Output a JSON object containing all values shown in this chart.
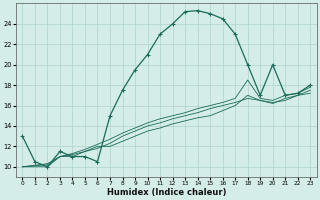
{
  "xlabel": "Humidex (Indice chaleur)",
  "bg_color": "#d5ede8",
  "grid_color": "#aed4cc",
  "line_color": "#1a6b5a",
  "xlim": [
    -0.5,
    23.5
  ],
  "ylim": [
    9,
    26
  ],
  "xticks": [
    0,
    1,
    2,
    3,
    4,
    5,
    6,
    7,
    8,
    9,
    10,
    11,
    12,
    13,
    14,
    15,
    16,
    17,
    18,
    19,
    20,
    21,
    22,
    23
  ],
  "yticks": [
    10,
    12,
    14,
    16,
    18,
    20,
    22,
    24
  ],
  "main_line": {
    "x": [
      0,
      1,
      2,
      3,
      4,
      5,
      6,
      7,
      8,
      9,
      10,
      11,
      12,
      13,
      14,
      15,
      16,
      17,
      18,
      19,
      20,
      21,
      22,
      23
    ],
    "y": [
      13,
      10.5,
      10,
      11.5,
      11,
      11,
      10.5,
      15,
      17.5,
      19.5,
      21,
      23,
      24,
      25.2,
      25.3,
      25,
      24.5,
      23,
      20,
      17,
      20,
      17,
      17.2,
      18
    ]
  },
  "line2": {
    "x": [
      0,
      2,
      3,
      4,
      5,
      6,
      7,
      8,
      9,
      10,
      11,
      12,
      13,
      14,
      15,
      16,
      17,
      18,
      19,
      20,
      21,
      22,
      23
    ],
    "y": [
      10,
      10,
      11,
      11,
      11.5,
      12,
      12,
      12.5,
      13,
      13.5,
      13.8,
      14.2,
      14.5,
      14.8,
      15,
      15.5,
      16,
      17,
      16.5,
      16.3,
      16.5,
      17,
      17.2
    ]
  },
  "line3": {
    "x": [
      0,
      2,
      3,
      4,
      5,
      6,
      7,
      8,
      9,
      10,
      11,
      12,
      13,
      14,
      15,
      16,
      17,
      18,
      19,
      20,
      21,
      22,
      23
    ],
    "y": [
      10,
      10.3,
      11,
      11.2,
      11.5,
      11.8,
      12.3,
      13,
      13.5,
      14,
      14.3,
      14.7,
      15,
      15.3,
      15.7,
      16,
      16.3,
      16.7,
      16.5,
      16.2,
      16.7,
      17,
      17.5
    ]
  },
  "line4": {
    "x": [
      0,
      2,
      3,
      4,
      5,
      6,
      7,
      8,
      9,
      10,
      11,
      12,
      13,
      14,
      15,
      16,
      17,
      18,
      19,
      20,
      21,
      22,
      23
    ],
    "y": [
      10,
      10.2,
      11,
      11.3,
      11.7,
      12.2,
      12.7,
      13.3,
      13.8,
      14.3,
      14.7,
      15,
      15.3,
      15.7,
      16,
      16.3,
      16.7,
      18.5,
      16.7,
      16.5,
      17,
      17.2,
      17.8
    ]
  }
}
